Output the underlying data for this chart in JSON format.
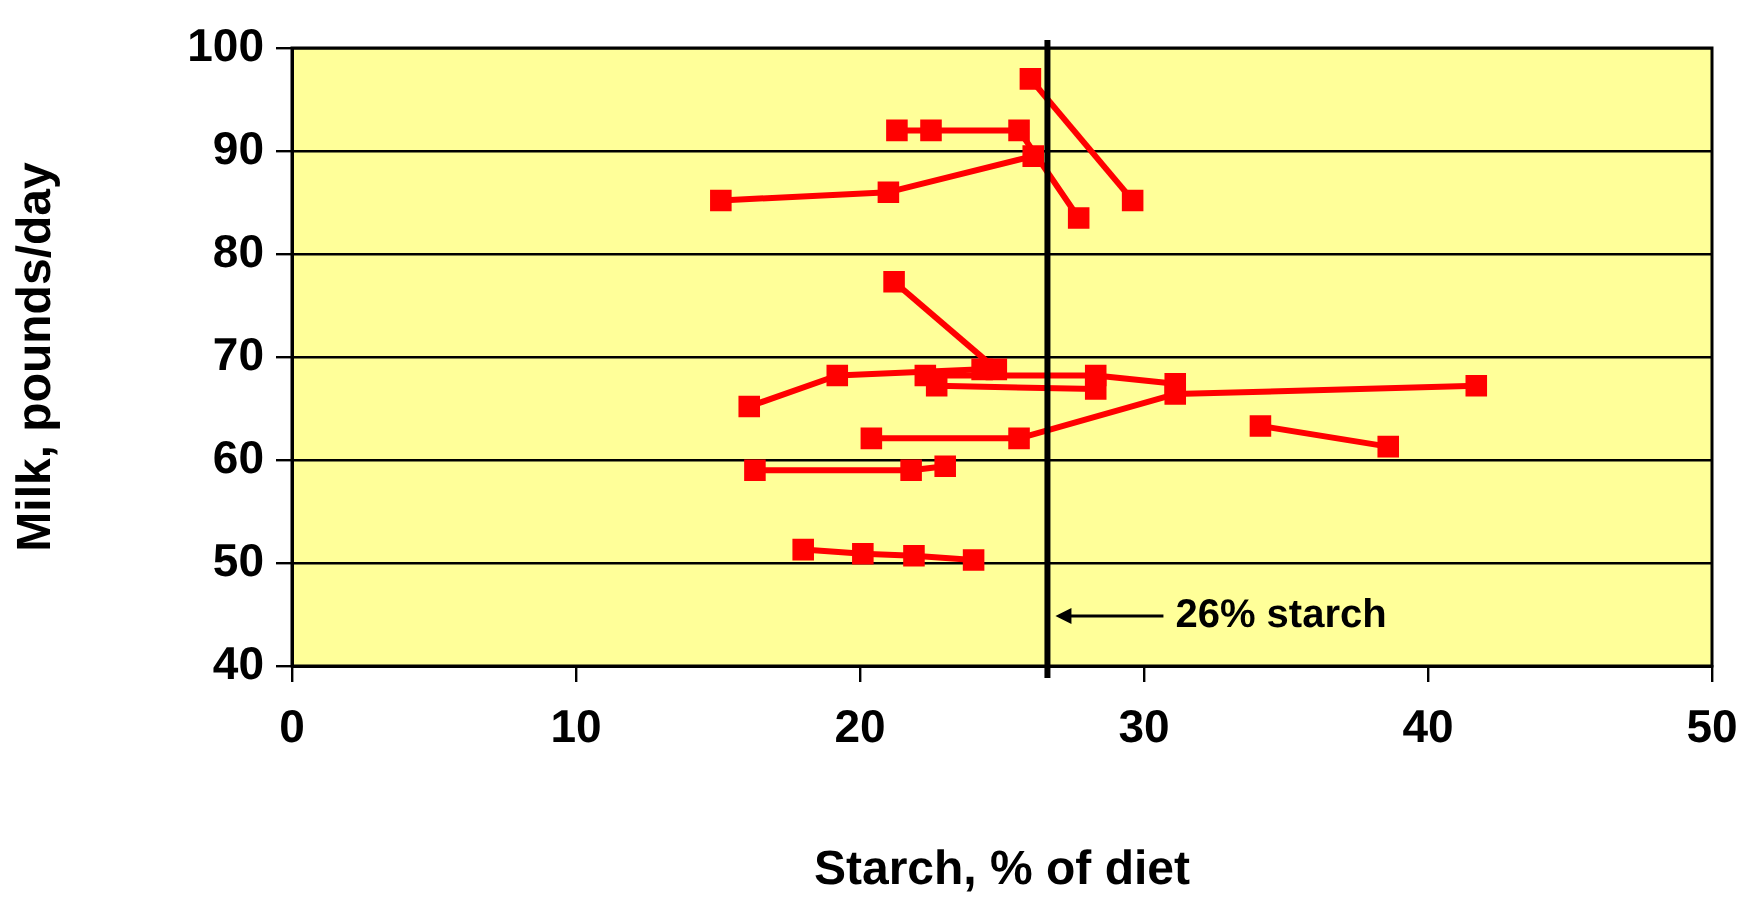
{
  "chart_data": {
    "type": "line",
    "xlabel": "Starch, % of diet",
    "ylabel": "Milk, pounds/day",
    "xlim": [
      0,
      50
    ],
    "xticks": [
      0,
      10,
      20,
      30,
      40,
      50
    ],
    "ylim": [
      40,
      100
    ],
    "yticks": [
      40,
      50,
      60,
      70,
      80,
      90,
      100
    ],
    "grid": "y",
    "legend": false,
    "marker": "square",
    "line_style": "solid",
    "ref_lines": [
      {
        "axis": "x",
        "value": 26.6,
        "label": "26% starch",
        "color": "#000000"
      }
    ],
    "series": [
      {
        "color": "#ff0000",
        "x": [
          15.1,
          21.0,
          26.1
        ],
        "values": [
          85.2,
          86.0,
          89.5
        ]
      },
      {
        "color": "#ff0000",
        "x": [
          26.0,
          29.6
        ],
        "values": [
          97.0,
          85.2
        ]
      },
      {
        "color": "#ff0000",
        "x": [
          21.3,
          22.5,
          25.6,
          27.7
        ],
        "values": [
          92.0,
          92.0,
          92.0,
          83.5
        ]
      },
      {
        "color": "#ff0000",
        "x": [
          21.2,
          24.8
        ],
        "values": [
          77.3,
          68.8
        ]
      },
      {
        "color": "#ff0000",
        "x": [
          16.1,
          19.2,
          24.3
        ],
        "values": [
          65.2,
          68.2,
          68.8
        ]
      },
      {
        "color": "#ff0000",
        "x": [
          22.3,
          28.3,
          31.1
        ],
        "values": [
          68.2,
          68.2,
          67.4
        ]
      },
      {
        "color": "#ff0000",
        "x": [
          22.7,
          28.3
        ],
        "values": [
          67.2,
          66.9
        ]
      },
      {
        "color": "#ff0000",
        "x": [
          20.4,
          25.6,
          31.1,
          41.7
        ],
        "values": [
          62.1,
          62.1,
          66.4,
          67.2
        ]
      },
      {
        "color": "#ff0000",
        "x": [
          34.1,
          38.6
        ],
        "values": [
          63.3,
          61.3
        ]
      },
      {
        "color": "#ff0000",
        "x": [
          16.3,
          21.8,
          23.0
        ],
        "values": [
          59.0,
          59.0,
          59.4
        ]
      },
      {
        "color": "#ff0000",
        "x": [
          18.0,
          20.1,
          21.9,
          24.0
        ],
        "values": [
          51.3,
          50.9,
          50.7,
          50.3
        ]
      }
    ]
  }
}
